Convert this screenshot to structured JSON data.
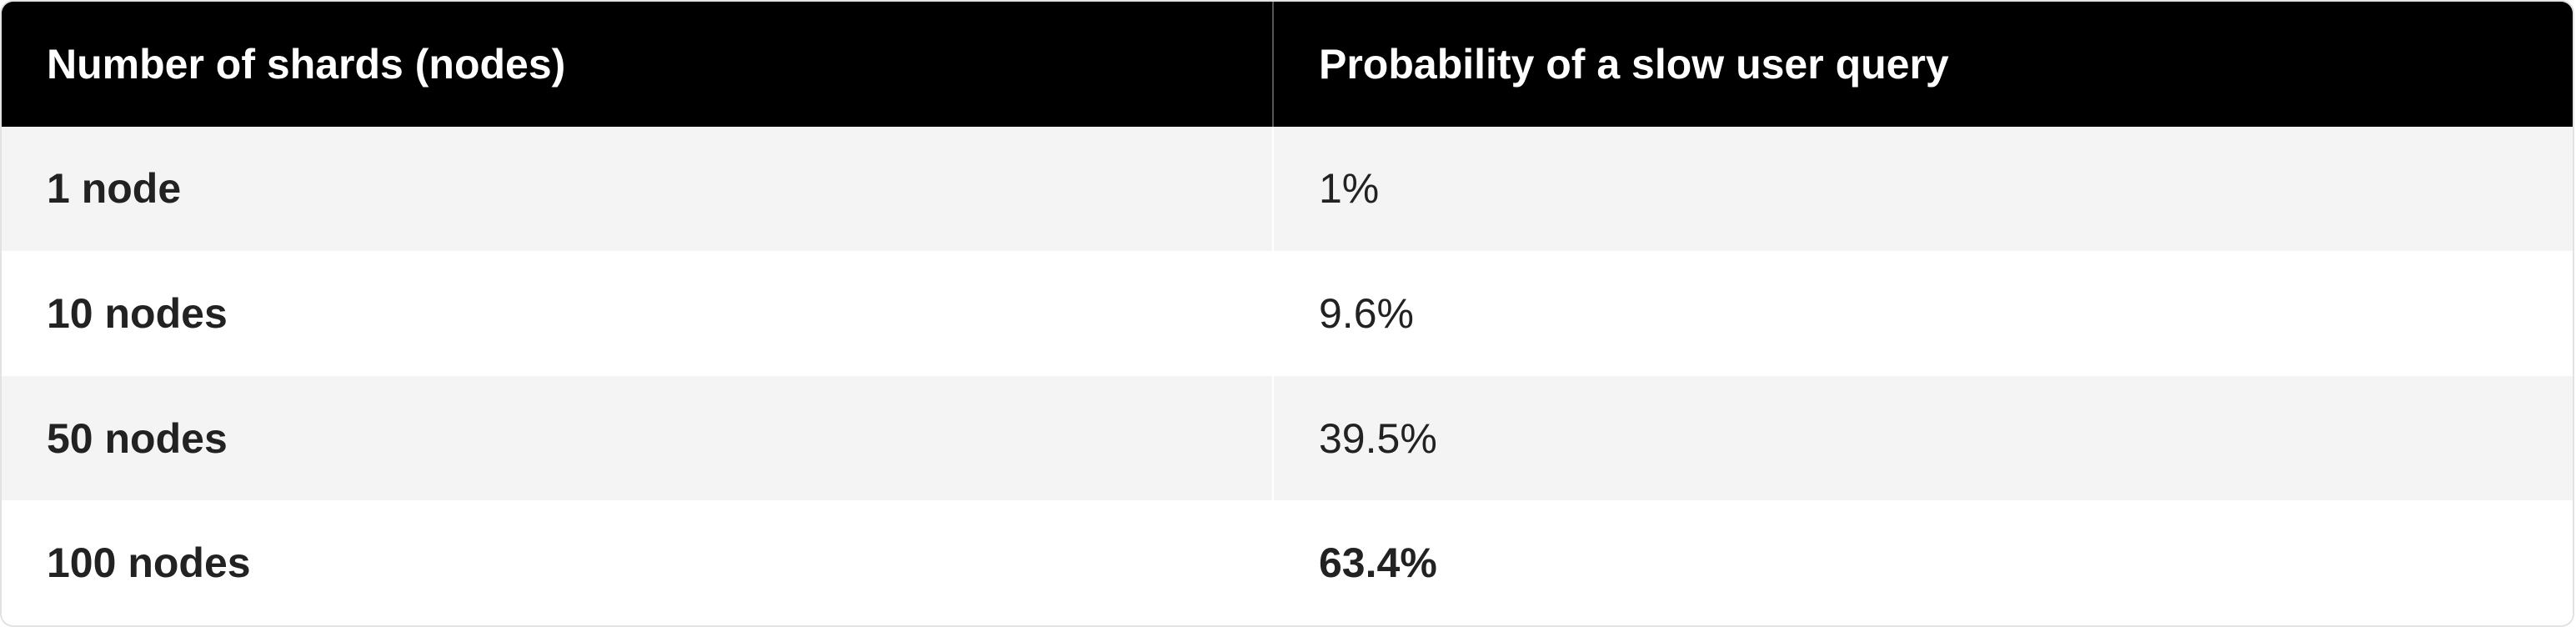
{
  "table": {
    "header": [
      "Number of shards (nodes)",
      "Probability of a slow user query"
    ],
    "rows": [
      [
        "1 node",
        "1%"
      ],
      [
        "10 nodes",
        "9.6%"
      ],
      [
        "50 nodes",
        "39.5%"
      ],
      [
        "100 nodes",
        "63.4%"
      ]
    ]
  }
}
